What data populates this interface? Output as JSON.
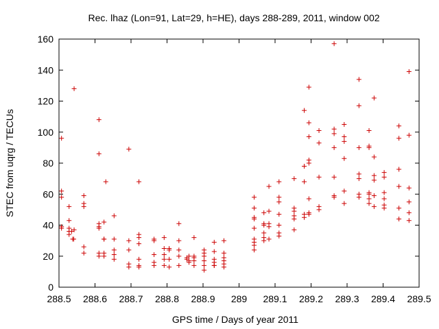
{
  "chart_data": {
    "type": "scatter",
    "title": "Rec. lhaz (Lon=91, Lat=29, h=HE), days 288-289, 2011, window 002",
    "xlabel": "GPS time / Days of year 2011",
    "ylabel": "STEC from uqrg / TECUs",
    "xlim": [
      288.5,
      289.5
    ],
    "ylim": [
      0,
      160
    ],
    "xticks": [
      288.5,
      288.6,
      288.7,
      288.8,
      288.9,
      289,
      289.1,
      289.2,
      289.3,
      289.4,
      289.5
    ],
    "xtick_labels": [
      "288.5",
      "288.6",
      "288.7",
      "288.8",
      "288.9",
      "289",
      "289.1",
      "289.2",
      "289.3",
      "289.4",
      "289.5"
    ],
    "yticks": [
      0,
      20,
      40,
      60,
      80,
      100,
      120,
      140,
      160
    ],
    "ytick_labels": [
      "0",
      "20",
      "40",
      "60",
      "80",
      "100",
      "120",
      "140",
      "160"
    ],
    "marker": "+",
    "color": "#cc0000",
    "series": [
      {
        "name": "STEC",
        "points": [
          [
            288.507,
            96
          ],
          [
            288.507,
            62
          ],
          [
            288.507,
            58
          ],
          [
            288.507,
            39
          ],
          [
            288.507,
            38
          ],
          [
            288.528,
            52
          ],
          [
            288.528,
            43
          ],
          [
            288.528,
            38
          ],
          [
            288.528,
            36
          ],
          [
            288.528,
            34
          ],
          [
            288.535,
            36
          ],
          [
            288.538,
            31
          ],
          [
            288.541,
            31
          ],
          [
            288.542,
            37
          ],
          [
            288.542,
            128
          ],
          [
            288.569,
            59
          ],
          [
            288.569,
            54
          ],
          [
            288.569,
            52
          ],
          [
            288.569,
            26
          ],
          [
            288.569,
            22
          ],
          [
            288.611,
            108
          ],
          [
            288.611,
            86
          ],
          [
            288.611,
            41
          ],
          [
            288.611,
            39
          ],
          [
            288.611,
            38
          ],
          [
            288.611,
            22
          ],
          [
            288.611,
            20
          ],
          [
            288.625,
            42
          ],
          [
            288.625,
            31
          ],
          [
            288.625,
            31
          ],
          [
            288.625,
            22
          ],
          [
            288.625,
            20
          ],
          [
            288.63,
            68
          ],
          [
            288.653,
            46
          ],
          [
            288.653,
            31
          ],
          [
            288.653,
            24
          ],
          [
            288.653,
            21
          ],
          [
            288.653,
            18
          ],
          [
            288.694,
            89
          ],
          [
            288.694,
            30
          ],
          [
            288.694,
            24
          ],
          [
            288.694,
            15
          ],
          [
            288.694,
            13
          ],
          [
            288.722,
            68
          ],
          [
            288.722,
            34
          ],
          [
            288.722,
            32
          ],
          [
            288.722,
            28
          ],
          [
            288.722,
            18
          ],
          [
            288.722,
            14
          ],
          [
            288.722,
            13
          ],
          [
            288.764,
            31
          ],
          [
            288.764,
            30
          ],
          [
            288.764,
            21
          ],
          [
            288.764,
            16
          ],
          [
            288.764,
            14
          ],
          [
            288.792,
            32
          ],
          [
            288.792,
            25
          ],
          [
            288.792,
            21
          ],
          [
            288.792,
            18
          ],
          [
            288.792,
            14
          ],
          [
            288.806,
            25
          ],
          [
            288.806,
            24
          ],
          [
            288.806,
            18
          ],
          [
            288.806,
            13
          ],
          [
            288.833,
            41
          ],
          [
            288.833,
            30
          ],
          [
            288.833,
            24
          ],
          [
            288.833,
            20
          ],
          [
            288.833,
            14
          ],
          [
            288.855,
            19
          ],
          [
            288.855,
            18
          ],
          [
            288.861,
            20
          ],
          [
            288.861,
            17
          ],
          [
            288.861,
            16
          ],
          [
            288.875,
            32
          ],
          [
            288.875,
            20
          ],
          [
            288.875,
            19
          ],
          [
            288.875,
            17
          ],
          [
            288.875,
            14
          ],
          [
            288.903,
            24
          ],
          [
            288.903,
            22
          ],
          [
            288.903,
            20
          ],
          [
            288.903,
            17
          ],
          [
            288.903,
            14
          ],
          [
            288.903,
            11
          ],
          [
            288.931,
            29
          ],
          [
            288.931,
            23
          ],
          [
            288.931,
            18
          ],
          [
            288.931,
            16
          ],
          [
            288.931,
            14
          ],
          [
            288.931,
            14
          ],
          [
            288.958,
            30
          ],
          [
            288.958,
            22
          ],
          [
            288.958,
            19
          ],
          [
            288.958,
            17
          ],
          [
            288.958,
            15
          ],
          [
            288.958,
            13
          ],
          [
            289.042,
            58
          ],
          [
            289.042,
            51
          ],
          [
            289.042,
            45
          ],
          [
            289.042,
            44
          ],
          [
            289.042,
            38
          ],
          [
            289.042,
            31
          ],
          [
            289.042,
            29
          ],
          [
            289.042,
            27
          ],
          [
            289.042,
            24
          ],
          [
            289.069,
            48
          ],
          [
            289.069,
            41
          ],
          [
            289.069,
            40
          ],
          [
            289.069,
            35
          ],
          [
            289.069,
            32
          ],
          [
            289.069,
            30
          ],
          [
            289.083,
            65
          ],
          [
            289.083,
            49
          ],
          [
            289.083,
            41
          ],
          [
            289.083,
            39
          ],
          [
            289.083,
            31
          ],
          [
            289.111,
            68
          ],
          [
            289.111,
            58
          ],
          [
            289.111,
            55
          ],
          [
            289.111,
            47
          ],
          [
            289.111,
            40
          ],
          [
            289.111,
            35
          ],
          [
            289.111,
            33
          ],
          [
            289.153,
            70
          ],
          [
            289.153,
            51
          ],
          [
            289.153,
            49
          ],
          [
            289.153,
            46
          ],
          [
            289.153,
            44
          ],
          [
            289.153,
            37
          ],
          [
            289.181,
            114
          ],
          [
            289.181,
            78
          ],
          [
            289.181,
            78
          ],
          [
            289.181,
            68
          ],
          [
            289.181,
            47
          ],
          [
            289.181,
            45
          ],
          [
            289.194,
            129
          ],
          [
            289.194,
            106
          ],
          [
            289.194,
            97
          ],
          [
            289.194,
            82
          ],
          [
            289.194,
            80
          ],
          [
            289.194,
            57
          ],
          [
            289.194,
            48
          ],
          [
            289.194,
            47
          ],
          [
            289.222,
            101
          ],
          [
            289.222,
            93
          ],
          [
            289.222,
            71
          ],
          [
            289.222,
            52
          ],
          [
            289.222,
            50
          ],
          [
            289.264,
            157
          ],
          [
            289.264,
            102
          ],
          [
            289.264,
            99
          ],
          [
            289.264,
            90
          ],
          [
            289.264,
            71
          ],
          [
            289.264,
            59
          ],
          [
            289.264,
            58
          ],
          [
            289.292,
            105
          ],
          [
            289.292,
            97
          ],
          [
            289.292,
            94
          ],
          [
            289.292,
            83
          ],
          [
            289.292,
            62
          ],
          [
            289.292,
            54
          ],
          [
            289.333,
            134
          ],
          [
            289.333,
            117
          ],
          [
            289.333,
            90
          ],
          [
            289.333,
            73
          ],
          [
            289.333,
            70
          ],
          [
            289.333,
            60
          ],
          [
            289.333,
            58
          ],
          [
            289.361,
            101
          ],
          [
            289.361,
            91
          ],
          [
            289.361,
            90
          ],
          [
            289.361,
            61
          ],
          [
            289.361,
            60
          ],
          [
            289.361,
            57
          ],
          [
            289.361,
            54
          ],
          [
            289.375,
            122
          ],
          [
            289.375,
            84
          ],
          [
            289.375,
            72
          ],
          [
            289.375,
            69
          ],
          [
            289.375,
            59
          ],
          [
            289.375,
            52
          ],
          [
            289.403,
            74
          ],
          [
            289.403,
            71
          ],
          [
            289.403,
            61
          ],
          [
            289.403,
            57
          ],
          [
            289.403,
            53
          ],
          [
            289.403,
            51
          ],
          [
            289.444,
            104
          ],
          [
            289.444,
            96
          ],
          [
            289.444,
            76
          ],
          [
            289.444,
            65
          ],
          [
            289.444,
            51
          ],
          [
            289.444,
            44
          ],
          [
            289.472,
            139
          ],
          [
            289.472,
            98
          ],
          [
            289.472,
            64
          ],
          [
            289.472,
            55
          ],
          [
            289.472,
            48
          ],
          [
            289.472,
            43
          ]
        ]
      }
    ]
  }
}
